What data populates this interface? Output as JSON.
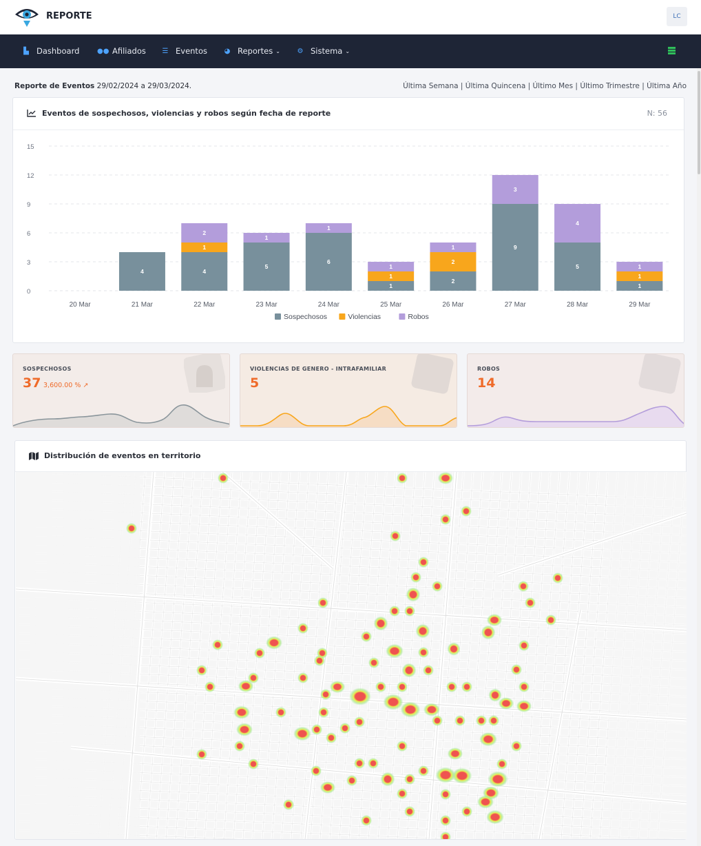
{
  "app": {
    "brand": "REPORTE",
    "user_initials": "LC"
  },
  "nav": {
    "items": [
      {
        "label": "Dashboard",
        "icon": "dashboard-icon"
      },
      {
        "label": "Afiliados",
        "icon": "users-icon"
      },
      {
        "label": "Eventos",
        "icon": "events-icon"
      },
      {
        "label": "Reportes",
        "icon": "reports-icon",
        "dropdown": true
      },
      {
        "label": "Sistema",
        "icon": "settings-icon",
        "dropdown": true
      }
    ]
  },
  "report": {
    "label": "Reporte de Eventos",
    "range": "29/02/2024 a 29/03/2024.",
    "ranges": [
      "Última Semana",
      "Última Quincena",
      "Último Mes",
      "Último Trimestre",
      "Última Año"
    ]
  },
  "chart_card": {
    "title": "Eventos de sospechosos, violencias y robos según fecha de reporte",
    "n": "N: 56"
  },
  "chart_data": {
    "type": "bar",
    "stacked": true,
    "categories": [
      "20 Mar",
      "21 Mar",
      "22 Mar",
      "23 Mar",
      "24 Mar",
      "25 Mar",
      "26 Mar",
      "27 Mar",
      "28 Mar",
      "29 Mar"
    ],
    "series": [
      {
        "name": "Sospechosos",
        "color": "#78909c",
        "values": [
          0,
          4,
          4,
          5,
          6,
          1,
          2,
          9,
          5,
          1
        ]
      },
      {
        "name": "Violencias",
        "color": "#f8a61c",
        "values": [
          0,
          0,
          1,
          0,
          0,
          1,
          2,
          0,
          0,
          1
        ]
      },
      {
        "name": "Robos",
        "color": "#b39ddb",
        "values": [
          0,
          0,
          2,
          1,
          1,
          1,
          1,
          3,
          4,
          1
        ]
      }
    ],
    "ylim": [
      0,
      15
    ],
    "yticks": [
      0,
      3,
      6,
      9,
      12,
      15
    ],
    "grid": true,
    "legend": "bottom-center"
  },
  "stats": [
    {
      "title": "SOSPECHOSOS",
      "value": "37",
      "pct": "3,600.00 %",
      "color": "#8a959b",
      "bg": "#f3ece9"
    },
    {
      "title": "VIOLENCIAS DE GENERO - INTRAFAMILIAR",
      "value": "5",
      "color": "#f8a61c",
      "bg": "#f5ebe3"
    },
    {
      "title": "ROBOS",
      "value": "14",
      "color": "#b39ddb",
      "bg": "#f3ebea"
    }
  ],
  "map_card": {
    "title": "Distribución de eventos en territorio"
  }
}
